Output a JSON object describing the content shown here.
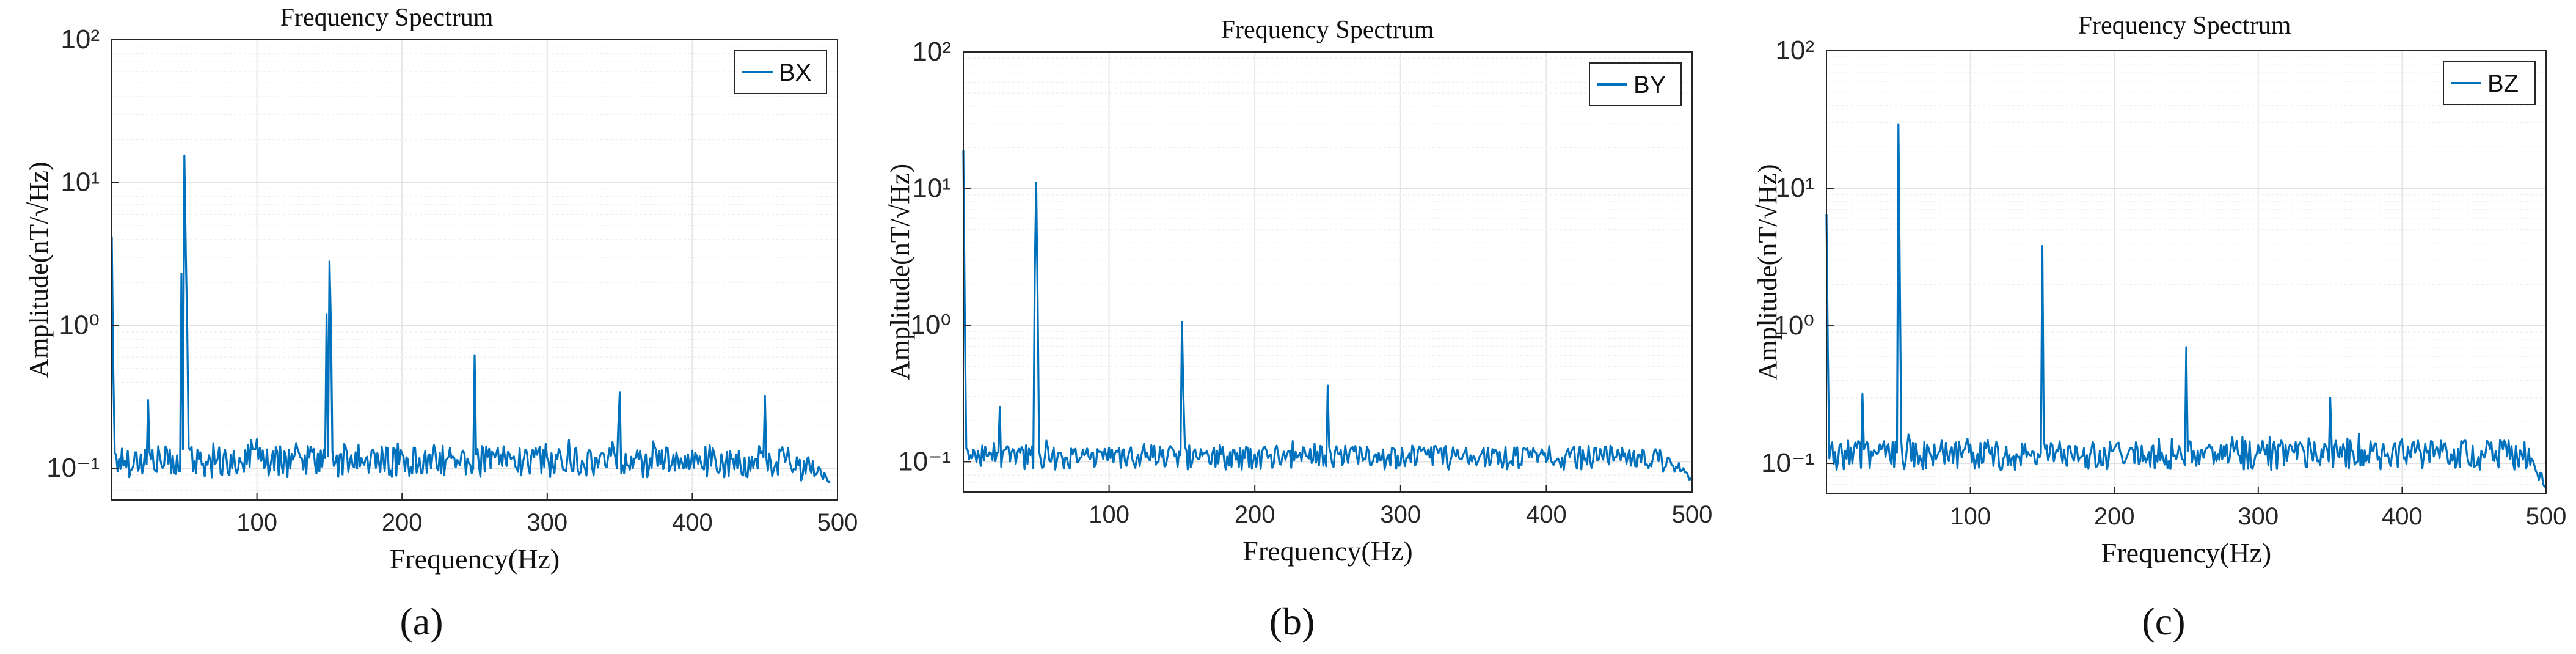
{
  "figure": {
    "charts": [
      {
        "caption": "(a)"
      },
      {
        "caption": "(b)"
      },
      {
        "caption": "(c)"
      }
    ]
  },
  "chart_data": [
    {
      "type": "line",
      "title": "Frequency Spectrum",
      "xlabel": "Frequency(Hz)",
      "ylabel": "Amplitude(nT/√Hz)",
      "yscale": "log",
      "xlim": [
        0,
        500
      ],
      "ylim": [
        0.06,
        100
      ],
      "xticks": [
        100,
        200,
        300,
        400,
        500
      ],
      "xtick_labels": [
        "100",
        "200",
        "300",
        "400",
        "500"
      ],
      "yticks": [
        0.1,
        1,
        10,
        100
      ],
      "ytick_labels": [
        "10⁻¹",
        "10⁰",
        "10¹",
        "10²"
      ],
      "grid": true,
      "legend": {
        "position": "top-right",
        "entries": [
          "BX"
        ]
      },
      "series": [
        {
          "name": "BX",
          "color": "#0072BD",
          "baseline": 0.115,
          "noise": 0.018,
          "end_drop": [
            470,
            495,
            0.08
          ],
          "peaks": [
            [
              0,
              4.2
            ],
            [
              1,
              0.5
            ],
            [
              25,
              0.3
            ],
            [
              48,
              2.3
            ],
            [
              50,
              15.5
            ],
            [
              51,
              3.2
            ],
            [
              52,
              0.9
            ],
            [
              100,
              0.16
            ],
            [
              148,
              1.2
            ],
            [
              150,
              2.8
            ],
            [
              151,
              1.0
            ],
            [
              250,
              0.62
            ],
            [
              349,
              0.2
            ],
            [
              350,
              0.34
            ],
            [
              450,
              0.32
            ]
          ],
          "x_max": 495
        }
      ]
    },
    {
      "type": "line",
      "title": "Frequency Spectrum",
      "xlabel": "Frequency(Hz)",
      "ylabel": "Amplitude(nT/√Hz)",
      "yscale": "log",
      "xlim": [
        0,
        500
      ],
      "ylim": [
        0.06,
        100
      ],
      "xticks": [
        100,
        200,
        300,
        400,
        500
      ],
      "xtick_labels": [
        "100",
        "200",
        "300",
        "400",
        "500"
      ],
      "yticks": [
        0.1,
        1,
        10,
        100
      ],
      "ytick_labels": [
        "10⁻¹",
        "10⁰",
        "10¹",
        "10²"
      ],
      "grid": true,
      "legend": {
        "position": "top-right",
        "entries": [
          "BY"
        ]
      },
      "series": [
        {
          "name": "BY",
          "color": "#0072BD",
          "baseline": 0.11,
          "noise": 0.014,
          "end_drop": [
            480,
            500,
            0.075
          ],
          "peaks": [
            [
              0,
              19
            ],
            [
              1,
              1.2
            ],
            [
              25,
              0.25
            ],
            [
              49,
              2.3
            ],
            [
              50,
              11
            ],
            [
              51,
              1.5
            ],
            [
              150,
              1.05
            ],
            [
              151,
              0.3
            ],
            [
              250,
              0.36
            ]
          ],
          "x_max": 500
        }
      ]
    },
    {
      "type": "line",
      "title": "Frequency Spectrum",
      "xlabel": "Frequency(Hz)",
      "ylabel": "Amplitude(nT/√Hz)",
      "yscale": "log",
      "xlim": [
        0,
        500
      ],
      "ylim": [
        0.06,
        100
      ],
      "xticks": [
        100,
        200,
        300,
        400,
        500
      ],
      "xtick_labels": [
        "100",
        "200",
        "300",
        "400",
        "500"
      ],
      "yticks": [
        0.1,
        1,
        10,
        100
      ],
      "ytick_labels": [
        "10⁻¹",
        "10⁰",
        "10¹",
        "10²"
      ],
      "grid": true,
      "legend": {
        "position": "top-right",
        "entries": [
          "BZ"
        ]
      },
      "series": [
        {
          "name": "BZ",
          "color": "#0072BD",
          "baseline": 0.118,
          "noise": 0.018,
          "end_drop": [
            485,
            500,
            0.07
          ],
          "peaks": [
            [
              0,
              6.5
            ],
            [
              1,
              0.6
            ],
            [
              25,
              0.32
            ],
            [
              50,
              29
            ],
            [
              51,
              2.0
            ],
            [
              150,
              3.8
            ],
            [
              250,
              0.7
            ],
            [
              350,
              0.3
            ],
            [
              400,
              0.15
            ]
          ],
          "x_max": 500
        }
      ]
    }
  ]
}
